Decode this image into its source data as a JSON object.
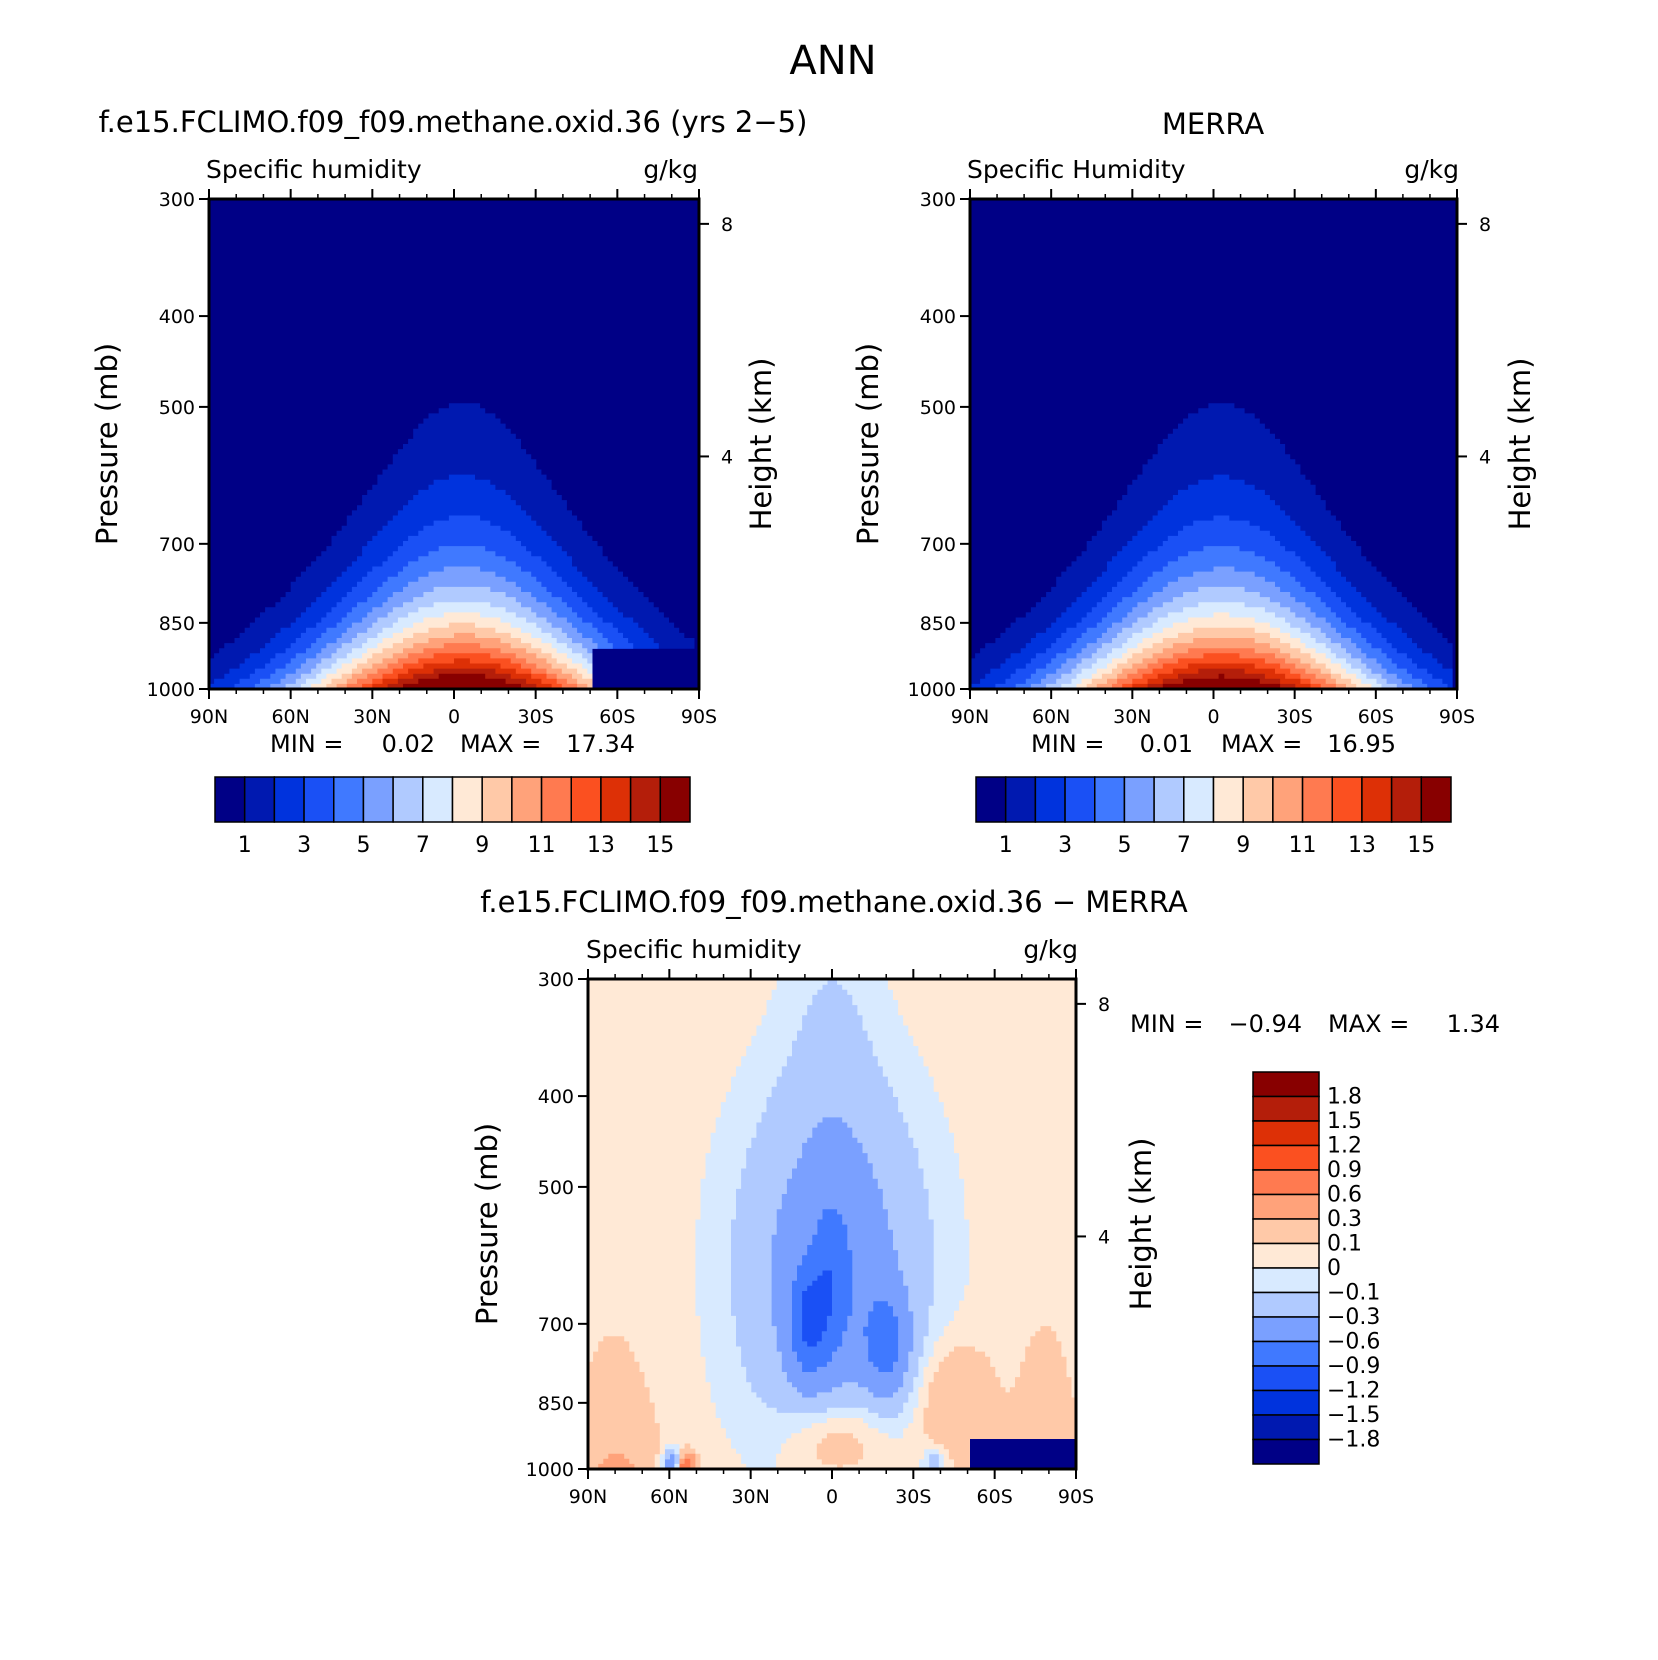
{
  "page_title": "ANN",
  "chart_data": [
    {
      "type": "heatmap",
      "title": "f.e15.FCLIMO.f09_f09.methane.oxid.36 (yrs 2−5)",
      "subtitle_left": "Specific humidity",
      "subtitle_right": "g/kg",
      "xlabel": "",
      "ylabel": "Pressure (mb)",
      "ylabel_right": "Height (km)",
      "x_ticks": [
        "90N",
        "60N",
        "30N",
        "0",
        "30S",
        "60S",
        "90S"
      ],
      "y_ticks": [
        "300",
        "400",
        "500",
        "700",
        "850",
        "1000"
      ],
      "y_right_ticks": [
        "8",
        "4"
      ],
      "xlim": [
        90,
        -90
      ],
      "ylim": [
        1000,
        300
      ],
      "y_scale": "log",
      "min_label": "MIN =",
      "min_value": "0.02",
      "max_label": "MAX =",
      "max_value": "17.34",
      "peak": {
        "lat": -3,
        "pressure": 1000,
        "value": 17.34
      },
      "colorbar": {
        "orientation": "horizontal",
        "labels": [
          "1",
          "3",
          "5",
          "7",
          "9",
          "11",
          "13",
          "15"
        ],
        "levels": [
          1,
          2,
          3,
          4,
          5,
          6,
          7,
          8,
          9,
          10,
          11,
          12,
          13,
          14,
          15
        ],
        "colors": [
          "#000086",
          "#0019b0",
          "#0033dd",
          "#1a50f5",
          "#4079ff",
          "#7aa0ff",
          "#b0caff",
          "#d8eaff",
          "#ffe9d6",
          "#ffc9a8",
          "#ffa27a",
          "#ff7a50",
          "#fb5020",
          "#dd3006",
          "#b41e0a",
          "#880000"
        ]
      },
      "masked_region": "lower right (about 50S–90S, 900–1000 mb)"
    },
    {
      "type": "heatmap",
      "title": "MERRA",
      "subtitle_left": "Specific Humidity",
      "subtitle_right": "g/kg",
      "xlabel": "",
      "ylabel": "Pressure (mb)",
      "ylabel_right": "Height (km)",
      "x_ticks": [
        "90N",
        "60N",
        "30N",
        "0",
        "30S",
        "60S",
        "90S"
      ],
      "y_ticks": [
        "300",
        "400",
        "500",
        "700",
        "850",
        "1000"
      ],
      "y_right_ticks": [
        "8",
        "4"
      ],
      "xlim": [
        90,
        -90
      ],
      "ylim": [
        1000,
        300
      ],
      "y_scale": "log",
      "min_label": "MIN =",
      "min_value": "0.01",
      "max_label": "MAX =",
      "max_value": "16.95",
      "peak": {
        "lat": -3,
        "pressure": 1000,
        "value": 16.95
      },
      "colorbar": {
        "orientation": "horizontal",
        "labels": [
          "1",
          "3",
          "5",
          "7",
          "9",
          "11",
          "13",
          "15"
        ],
        "levels": [
          1,
          2,
          3,
          4,
          5,
          6,
          7,
          8,
          9,
          10,
          11,
          12,
          13,
          14,
          15
        ],
        "colors": [
          "#000086",
          "#0019b0",
          "#0033dd",
          "#1a50f5",
          "#4079ff",
          "#7aa0ff",
          "#b0caff",
          "#d8eaff",
          "#ffe9d6",
          "#ffc9a8",
          "#ffa27a",
          "#ff7a50",
          "#fb5020",
          "#dd3006",
          "#b41e0a",
          "#880000"
        ]
      }
    },
    {
      "type": "heatmap",
      "title": "f.e15.FCLIMO.f09_f09.methane.oxid.36 − MERRA",
      "subtitle_left": "Specific humidity",
      "subtitle_right": "g/kg",
      "xlabel": "",
      "ylabel": "Pressure (mb)",
      "ylabel_right": "Height (km)",
      "x_ticks": [
        "90N",
        "60N",
        "30N",
        "0",
        "30S",
        "60S",
        "90S"
      ],
      "y_ticks": [
        "300",
        "400",
        "500",
        "700",
        "850",
        "1000"
      ],
      "y_right_ticks": [
        "8",
        "4"
      ],
      "xlim": [
        90,
        -90
      ],
      "ylim": [
        1000,
        300
      ],
      "y_scale": "log",
      "min_label": "MIN =",
      "min_value": "−0.94",
      "max_label": "MAX =",
      "max_value": "1.34",
      "colorbar": {
        "orientation": "vertical",
        "labels": [
          "1.8",
          "1.5",
          "1.2",
          "0.9",
          "0.6",
          "0.3",
          "0.1",
          "0",
          "−0.1",
          "−0.3",
          "−0.6",
          "−0.9",
          "−1.2",
          "−1.5",
          "−1.8"
        ],
        "levels": [
          1.8,
          1.5,
          1.2,
          0.9,
          0.6,
          0.3,
          0.1,
          0,
          -0.1,
          -0.3,
          -0.6,
          -0.9,
          -1.2,
          -1.5,
          -1.8
        ],
        "colors": [
          "#880000",
          "#b41e0a",
          "#dd3006",
          "#fb5020",
          "#ff7a50",
          "#ffa27a",
          "#ffc9a8",
          "#ffe9d6",
          "#d8eaff",
          "#b0caff",
          "#7aa0ff",
          "#4079ff",
          "#1a50f5",
          "#0033dd",
          "#0019b0",
          "#000086"
        ]
      },
      "masked_region": "lower right (about 50S–90S, 930–1000 mb)"
    }
  ]
}
